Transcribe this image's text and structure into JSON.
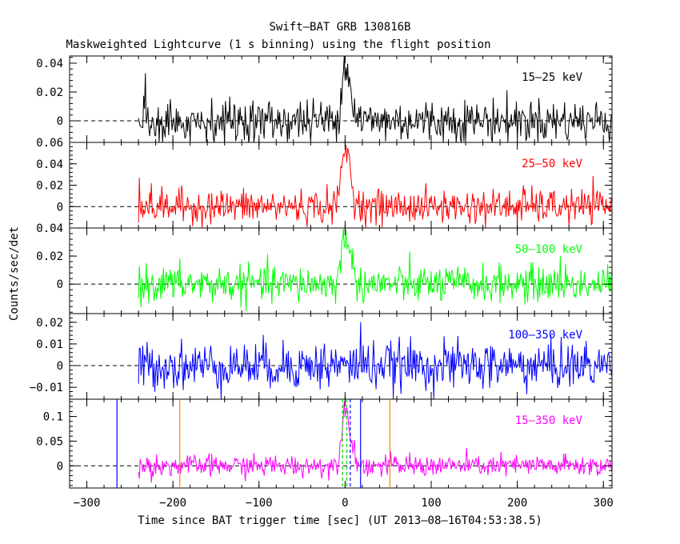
{
  "title": "Swift–BAT GRB 130816B",
  "subtitle": "Maskweighted Lightcurve (1 s binning) using the flight position",
  "ylabel": "Counts/sec/det",
  "xlabel": "Time since BAT trigger time [sec] (UT 2013–08–16T04:53:38.5)",
  "chart_data": [
    {
      "type": "line",
      "band": "15–25 keV",
      "color": "#000000",
      "ylim": [
        -0.015,
        0.045
      ],
      "yticks": [
        0,
        0.02,
        0.04
      ],
      "ytick_labels": [
        "0",
        "0.02",
        "0.04"
      ],
      "noise_sigma": 0.0075,
      "data_start": -240,
      "data_end": 310,
      "peak": {
        "t": 0,
        "value": 0.04
      },
      "spikes": [
        {
          "t": -232,
          "value": 0.033
        }
      ]
    },
    {
      "type": "line",
      "band": "25–50 keV",
      "color": "#ff0000",
      "ylim": [
        -0.02,
        0.06
      ],
      "yticks": [
        0,
        0.02,
        0.04,
        0.06
      ],
      "ytick_labels": [
        "0",
        "0.02",
        "0.04",
        "0.06"
      ],
      "noise_sigma": 0.008,
      "data_start": -240,
      "data_end": 310,
      "peak": {
        "t": 0,
        "value": 0.055
      },
      "spikes": [
        {
          "t": -239,
          "value": 0.027
        },
        {
          "t": 207,
          "value": 0.02
        }
      ]
    },
    {
      "type": "line",
      "band": "50–100 keV",
      "color": "#00ff00",
      "ylim": [
        -0.021,
        0.04
      ],
      "yticks": [
        0,
        0.02,
        0.04
      ],
      "ytick_labels": [
        "0",
        "0.02",
        "0.04"
      ],
      "noise_sigma": 0.0065,
      "data_start": -240,
      "data_end": 310,
      "peak": {
        "t": 0,
        "value": 0.036
      },
      "spikes": [
        {
          "t": 250,
          "value": 0.02
        }
      ]
    },
    {
      "type": "line",
      "band": "100–350 keV",
      "color": "#0000ff",
      "ylim": [
        -0.0155,
        0.024
      ],
      "yticks": [
        -0.01,
        0,
        0.01,
        0.02
      ],
      "ytick_labels": [
        "−0.01",
        "0",
        "0.01",
        "0.02"
      ],
      "noise_sigma": 0.0055,
      "data_start": -240,
      "data_end": 310,
      "spikes": [
        {
          "t": 18,
          "value": 0.02
        }
      ]
    },
    {
      "type": "line",
      "band": "15–350 keV",
      "color": "#ff00ff",
      "ylim": [
        -0.045,
        0.135
      ],
      "yticks": [
        0,
        0.05,
        0.1
      ],
      "ytick_labels": [
        "0",
        "0.05",
        "0.1"
      ],
      "noise_sigma": 0.011,
      "data_start": -240,
      "data_end": 310,
      "peak": {
        "t": 0,
        "value": 0.12
      },
      "markers": [
        {
          "t": -265,
          "color": "#0000ff",
          "style": "solid"
        },
        {
          "t": -192,
          "color": "#ff8000",
          "style": "solid"
        },
        {
          "t": -3,
          "color": "#00cc00",
          "style": "dashed"
        },
        {
          "t": 2,
          "color": "#00cc00",
          "style": "dashed"
        },
        {
          "t": 6,
          "color": "#0000ff",
          "style": "dashed"
        },
        {
          "t": 18,
          "color": "#0000ff",
          "style": "solid"
        },
        {
          "t": 52,
          "color": "#ff8000",
          "style": "solid"
        }
      ]
    }
  ],
  "x_axis": {
    "xlim": [
      -320,
      310
    ],
    "ticks": [
      -300,
      -200,
      -100,
      0,
      100,
      200,
      300
    ],
    "tick_labels": [
      "−300",
      "−200",
      "−100",
      "0",
      "100",
      "200",
      "300"
    ],
    "minor_step": 20
  }
}
